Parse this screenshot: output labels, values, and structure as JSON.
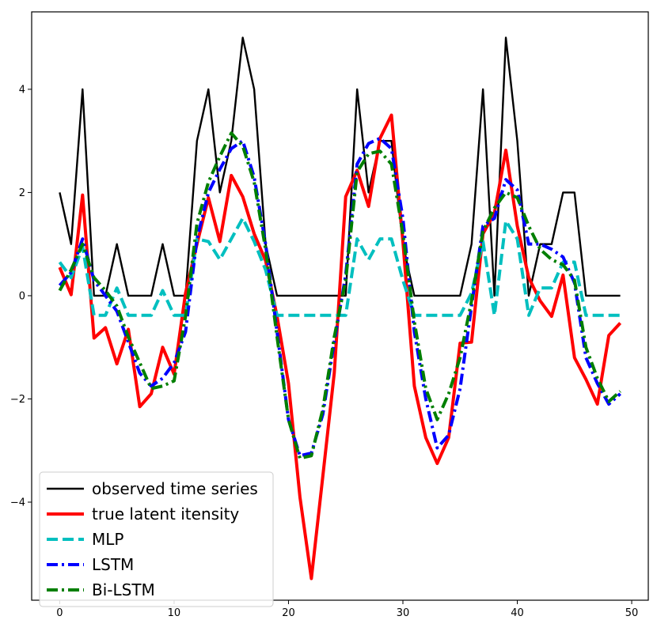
{
  "chart_data": {
    "type": "line",
    "title": "",
    "xlabel": "",
    "ylabel": "",
    "xlim": [
      -2.45,
      51.45
    ],
    "ylim": [
      -5.9,
      5.5
    ],
    "xticks": [
      0,
      10,
      20,
      30,
      40,
      50
    ],
    "yticks": [
      -4,
      -2,
      0,
      2,
      4
    ],
    "grid": false,
    "legend_position": "lower-left",
    "x": [
      0,
      1,
      2,
      3,
      4,
      5,
      6,
      7,
      8,
      9,
      10,
      11,
      12,
      13,
      14,
      15,
      16,
      17,
      18,
      19,
      20,
      21,
      22,
      23,
      24,
      25,
      26,
      27,
      28,
      29,
      30,
      31,
      32,
      33,
      34,
      35,
      36,
      37,
      38,
      39,
      40,
      41,
      42,
      43,
      44,
      45,
      46,
      47,
      48,
      49
    ],
    "series": [
      {
        "name": "observed time series",
        "color": "#000000",
        "width": 2.4,
        "dash": "",
        "values": [
          2,
          1,
          4,
          0,
          0,
          1,
          0,
          0,
          0,
          1,
          0,
          0,
          3,
          4,
          2,
          3,
          5,
          4,
          1,
          0,
          0,
          0,
          0,
          0,
          0,
          0,
          4,
          2,
          3,
          3,
          1,
          0,
          0,
          0,
          0,
          0,
          1,
          4,
          0,
          5,
          3,
          0,
          1,
          1,
          2,
          2,
          0,
          0,
          0,
          0
        ]
      },
      {
        "name": "true latent itensity",
        "color": "#ff0000",
        "width": 4,
        "dash": "",
        "values": [
          0.55,
          0.02,
          1.95,
          -0.82,
          -0.62,
          -1.32,
          -0.65,
          -2.15,
          -1.9,
          -1.0,
          -1.52,
          0.05,
          1.0,
          1.9,
          1.05,
          2.33,
          1.92,
          1.2,
          0.68,
          -0.4,
          -1.7,
          -3.9,
          -5.48,
          -3.5,
          -1.5,
          1.92,
          2.43,
          1.73,
          3.05,
          3.5,
          1.05,
          -1.75,
          -2.75,
          -3.25,
          -2.75,
          -0.92,
          -0.9,
          1.2,
          1.6,
          2.82,
          1.35,
          0.35,
          -0.1,
          -0.4,
          0.4,
          -1.2,
          -1.62,
          -2.1,
          -0.77,
          -0.53
        ]
      },
      {
        "name": "MLP",
        "color": "#00bfbf",
        "width": 4,
        "dash": "14,6",
        "values": [
          0.65,
          0.35,
          0.95,
          -0.38,
          -0.38,
          0.15,
          -0.38,
          -0.38,
          -0.38,
          0.1,
          -0.38,
          -0.38,
          1.1,
          1.05,
          0.7,
          1.1,
          1.5,
          1.05,
          0.5,
          -0.38,
          -0.38,
          -0.38,
          -0.38,
          -0.38,
          -0.38,
          -0.38,
          1.1,
          0.7,
          1.1,
          1.1,
          0.3,
          -0.38,
          -0.38,
          -0.38,
          -0.38,
          -0.38,
          0.05,
          1.05,
          -0.38,
          1.45,
          1.1,
          -0.38,
          0.15,
          0.15,
          0.65,
          0.65,
          -0.38,
          -0.38,
          -0.38,
          -0.38
        ]
      },
      {
        "name": "LSTM",
        "color": "#0000ff",
        "width": 4,
        "dash": "14,5,3,5",
        "values": [
          0.2,
          0.45,
          1.1,
          0.3,
          0.0,
          -0.3,
          -0.9,
          -1.5,
          -1.75,
          -1.6,
          -1.3,
          -0.7,
          1.1,
          2.0,
          2.45,
          2.85,
          3.0,
          2.3,
          1.0,
          -0.7,
          -2.4,
          -3.1,
          -3.05,
          -2.3,
          -0.9,
          0.4,
          2.55,
          2.95,
          3.05,
          2.85,
          1.5,
          -0.7,
          -2.0,
          -2.95,
          -2.7,
          -1.8,
          -0.2,
          1.35,
          1.5,
          2.25,
          2.05,
          1.0,
          1.0,
          0.9,
          0.75,
          0.25,
          -1.2,
          -1.7,
          -2.1,
          -1.9
        ]
      },
      {
        "name": "Bi-LSTM",
        "color": "#007f00",
        "width": 4,
        "dash": "14,5,3,5",
        "values": [
          0.1,
          0.5,
          1.0,
          0.35,
          0.1,
          -0.2,
          -0.8,
          -1.3,
          -1.8,
          -1.75,
          -1.65,
          -0.4,
          1.4,
          2.2,
          2.7,
          3.15,
          2.9,
          2.2,
          0.9,
          -0.8,
          -2.4,
          -3.15,
          -3.1,
          -2.2,
          -0.8,
          0.3,
          2.4,
          2.75,
          2.8,
          2.55,
          1.2,
          -0.5,
          -1.8,
          -2.4,
          -1.9,
          -1.2,
          -0.1,
          1.25,
          1.7,
          2.0,
          1.9,
          1.35,
          0.9,
          0.7,
          0.6,
          0.3,
          -1.0,
          -1.6,
          -2.05,
          -1.85
        ]
      }
    ]
  }
}
